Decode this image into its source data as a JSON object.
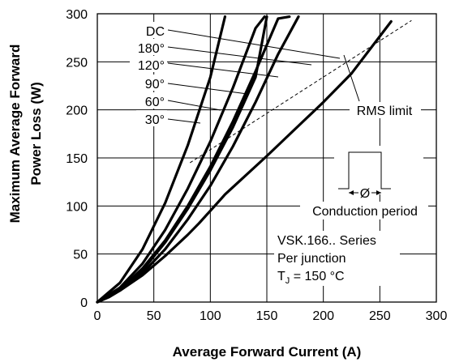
{
  "chart_data": {
    "type": "line",
    "xlabel": "Average Forward Current (A)",
    "ylabel": [
      "Maximum Average Forward",
      "Power Loss (W)"
    ],
    "xlim": [
      0,
      300
    ],
    "ylim": [
      0,
      300
    ],
    "xticks": [
      0,
      50,
      100,
      150,
      200,
      250,
      300
    ],
    "yticks": [
      0,
      50,
      100,
      150,
      200,
      250,
      300
    ],
    "grid": true,
    "series": [
      {
        "name": "DC",
        "x": [
          0,
          10,
          20,
          30,
          40,
          50,
          60,
          70,
          80,
          90,
          100,
          110,
          113,
          125,
          150,
          175,
          200,
          225,
          260
        ],
        "y": [
          0,
          5,
          12,
          20,
          28,
          38,
          48,
          59,
          70,
          82,
          95,
          108,
          112,
          125,
          152,
          180,
          208,
          238,
          292
        ]
      },
      {
        "name": "180°",
        "x": [
          0,
          20,
          40,
          60,
          80,
          100,
          120,
          140,
          150
        ],
        "y": [
          0,
          13,
          33,
          62,
          97,
          137,
          182,
          234,
          297
        ]
      },
      {
        "name": "120°",
        "x": [
          0,
          20,
          40,
          60,
          80,
          100,
          120,
          140,
          160,
          178
        ],
        "y": [
          0,
          12,
          30,
          55,
          86,
          121,
          162,
          208,
          258,
          297
        ]
      },
      {
        "name": "90°",
        "x": [
          0,
          20,
          40,
          60,
          80,
          100,
          120,
          140,
          160,
          170
        ],
        "y": [
          0,
          13,
          35,
          64,
          100,
          141,
          188,
          240,
          295,
          297
        ]
      },
      {
        "name": "60°",
        "x": [
          0,
          20,
          40,
          60,
          80,
          100,
          120,
          140,
          148
        ],
        "y": [
          0,
          15,
          40,
          75,
          118,
          167,
          223,
          285,
          297
        ]
      },
      {
        "name": "30°",
        "x": [
          0,
          20,
          40,
          60,
          80,
          100,
          113
        ],
        "y": [
          0,
          20,
          55,
          103,
          163,
          234,
          297
        ]
      }
    ],
    "rms_limit": {
      "x": [
        82,
        278
      ],
      "y": [
        145,
        293
      ]
    },
    "annotations": {
      "rms_limit": "RMS limit",
      "conduction": "Conduction period",
      "phi": "Ø",
      "series_name": "VSK.166.. Series",
      "per_junction": "Per junction",
      "tj_prefix": "T",
      "tj_sub": "J",
      "tj_suffix": " = 150 °C"
    }
  }
}
